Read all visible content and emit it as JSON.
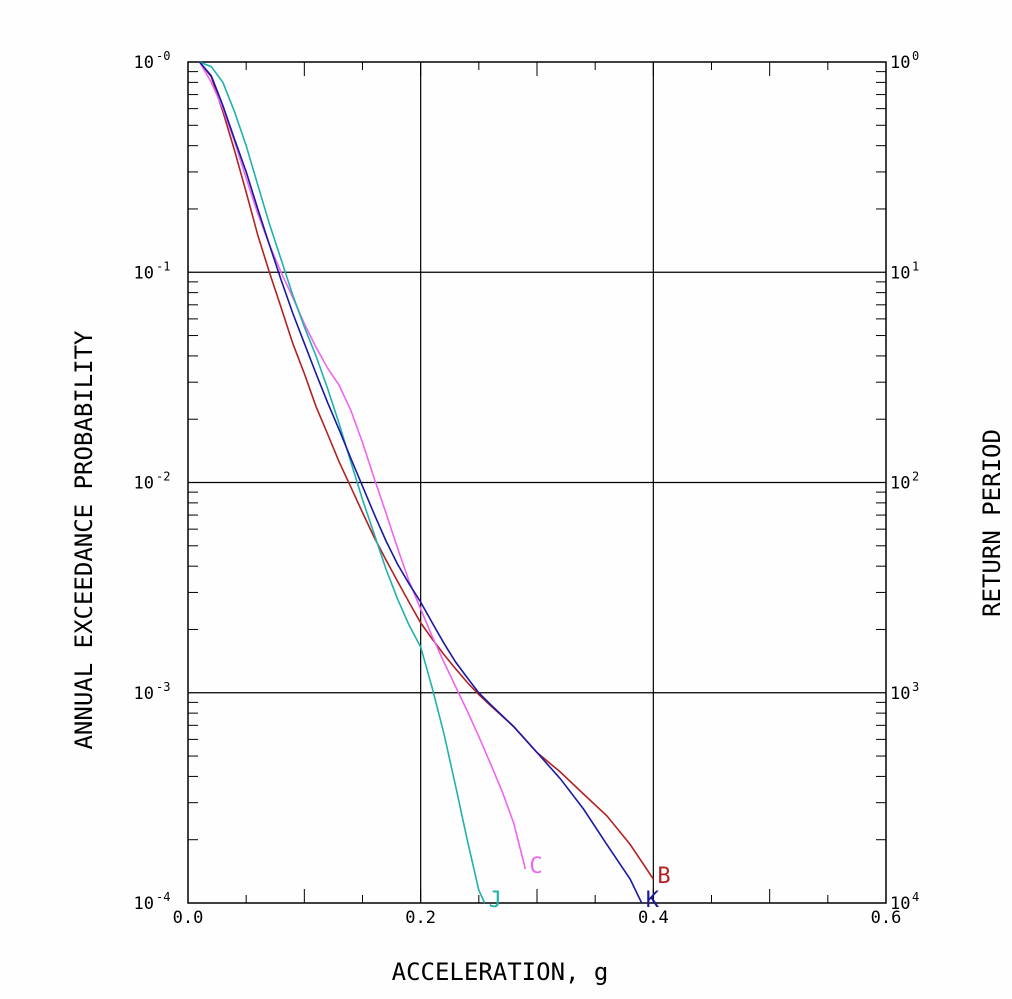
{
  "chart_data": {
    "type": "line",
    "title": "",
    "xlabel": "ACCELERATION, g",
    "ylabel": "ANNUAL EXCEEDANCE PROBABILITY",
    "y2label": "RETURN PERIOD",
    "xlim": [
      0.0,
      0.6
    ],
    "ylim": [
      0.0001,
      1
    ],
    "yscale": "log",
    "grid": true,
    "x_ticks": [
      "0.0",
      "0.2",
      "0.4",
      "0.6"
    ],
    "x_tick_values": [
      0.0,
      0.2,
      0.4,
      0.6
    ],
    "y_ticks": [
      {
        "base": "10",
        "exp": "-0"
      },
      {
        "base": "10",
        "exp": "-1"
      },
      {
        "base": "10",
        "exp": "-2"
      },
      {
        "base": "10",
        "exp": "-3"
      },
      {
        "base": "10",
        "exp": "-4"
      }
    ],
    "y_tick_values": [
      1,
      0.1,
      0.01,
      0.001,
      0.0001
    ],
    "y2_ticks": [
      {
        "base": "10",
        "exp": "0"
      },
      {
        "base": "10",
        "exp": "1"
      },
      {
        "base": "10",
        "exp": "2"
      },
      {
        "base": "10",
        "exp": "3"
      },
      {
        "base": "10",
        "exp": "4"
      }
    ],
    "series": [
      {
        "name": "B",
        "color": "#b22222",
        "x": [
          0.01,
          0.02,
          0.03,
          0.04,
          0.05,
          0.06,
          0.07,
          0.08,
          0.09,
          0.1,
          0.11,
          0.12,
          0.13,
          0.14,
          0.15,
          0.16,
          0.17,
          0.18,
          0.19,
          0.2,
          0.21,
          0.22,
          0.23,
          0.24,
          0.25,
          0.26,
          0.28,
          0.3,
          0.32,
          0.34,
          0.36,
          0.38,
          0.4
        ],
        "y": [
          1.0,
          0.85,
          0.58,
          0.38,
          0.24,
          0.15,
          0.1,
          0.068,
          0.046,
          0.033,
          0.023,
          0.017,
          0.0125,
          0.0095,
          0.0072,
          0.0055,
          0.0043,
          0.0034,
          0.0027,
          0.00215,
          0.0018,
          0.00152,
          0.0013,
          0.00112,
          0.00098,
          0.00087,
          0.00069,
          0.00052,
          0.00042,
          0.00033,
          0.00026,
          0.00019,
          0.00013
        ]
      },
      {
        "name": "C",
        "color": "#ee66ee",
        "x": [
          0.01,
          0.02,
          0.03,
          0.04,
          0.05,
          0.06,
          0.07,
          0.08,
          0.09,
          0.1,
          0.11,
          0.12,
          0.13,
          0.14,
          0.15,
          0.16,
          0.17,
          0.18,
          0.19,
          0.2,
          0.21,
          0.22,
          0.23,
          0.24,
          0.25,
          0.26,
          0.27,
          0.28,
          0.29
        ],
        "y": [
          1.0,
          0.8,
          0.6,
          0.42,
          0.28,
          0.19,
          0.135,
          0.1,
          0.076,
          0.057,
          0.044,
          0.035,
          0.029,
          0.022,
          0.0155,
          0.0105,
          0.0072,
          0.0049,
          0.0034,
          0.0025,
          0.00185,
          0.0014,
          0.00107,
          0.00082,
          0.00062,
          0.00046,
          0.00034,
          0.00024,
          0.000145
        ]
      },
      {
        "name": "J",
        "color": "#20b2aa",
        "x": [
          0.01,
          0.02,
          0.03,
          0.04,
          0.05,
          0.06,
          0.07,
          0.08,
          0.09,
          0.1,
          0.11,
          0.12,
          0.13,
          0.14,
          0.15,
          0.16,
          0.17,
          0.18,
          0.19,
          0.2,
          0.21,
          0.22,
          0.23,
          0.24,
          0.25,
          0.255
        ],
        "y": [
          1.0,
          0.95,
          0.8,
          0.58,
          0.4,
          0.26,
          0.17,
          0.115,
          0.078,
          0.055,
          0.04,
          0.028,
          0.019,
          0.0125,
          0.0083,
          0.0057,
          0.0039,
          0.0028,
          0.0021,
          0.00165,
          0.00105,
          0.00064,
          0.00036,
          0.0002,
          0.000115,
          0.0001
        ]
      },
      {
        "name": "K",
        "color": "#1a1aa0",
        "x": [
          0.01,
          0.02,
          0.03,
          0.04,
          0.05,
          0.06,
          0.07,
          0.08,
          0.09,
          0.1,
          0.11,
          0.12,
          0.13,
          0.14,
          0.15,
          0.16,
          0.17,
          0.18,
          0.19,
          0.2,
          0.21,
          0.22,
          0.23,
          0.24,
          0.25,
          0.26,
          0.28,
          0.3,
          0.32,
          0.34,
          0.36,
          0.38,
          0.39
        ],
        "y": [
          1.0,
          0.86,
          0.62,
          0.43,
          0.3,
          0.2,
          0.135,
          0.092,
          0.064,
          0.046,
          0.033,
          0.024,
          0.0178,
          0.013,
          0.0096,
          0.0071,
          0.0053,
          0.0041,
          0.0033,
          0.0027,
          0.00215,
          0.00172,
          0.0014,
          0.00118,
          0.001,
          0.00088,
          0.00069,
          0.00052,
          0.00039,
          0.00028,
          0.00019,
          0.00013,
          0.0001
        ]
      }
    ]
  }
}
